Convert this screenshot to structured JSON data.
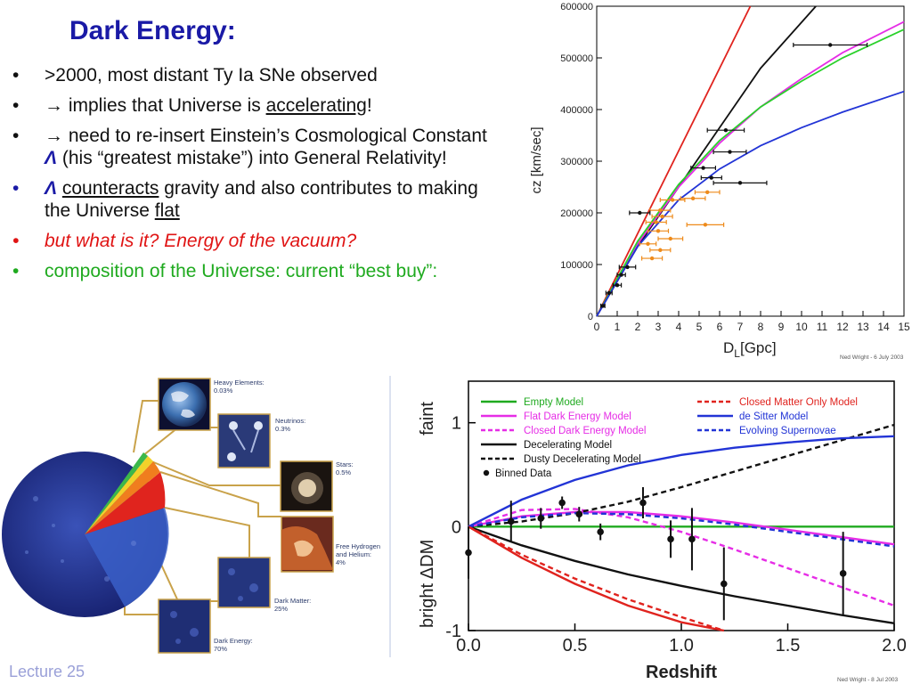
{
  "slide": {
    "title": "Dark Energy:",
    "footer": "Lecture 25",
    "bullets": [
      {
        "prefix": "",
        "text": ">2000, most distant Ty Ia SNe observed"
      },
      {
        "text_a": "→ implies that Universe is ",
        "text_u": "accelerating",
        "text_b": "!"
      },
      {
        "text_a": "→ need to re-insert Einstein’s Cosmological Constant ",
        "lambda": "Λ",
        "text_b": " (his “greatest mistake”) into General Relativity!"
      },
      {
        "lambda": "Λ",
        "text_u": "counteracts",
        "text_a": " gravity and also contributes to making the Universe ",
        "text_u2": "flat"
      },
      {
        "text": "but what is it?  Energy of the vacuum?"
      },
      {
        "text": "composition of the Universe: current “best buy”:"
      }
    ],
    "bullet_glyph": "•"
  },
  "composition": {
    "labels": [
      {
        "name": "Heavy Elements:",
        "value": "0.03%"
      },
      {
        "name": "Neutrinos:",
        "value": "0.3%"
      },
      {
        "name": "Stars:",
        "value": "0.5%"
      },
      {
        "name": "Free Hydrogen and Helium:",
        "value": "4%"
      },
      {
        "name": "Dark Matter:",
        "value": "25%"
      },
      {
        "name": "Dark Energy:",
        "value": "70%"
      }
    ]
  },
  "chart_data": [
    {
      "type": "scatter",
      "xlabel": "D",
      "xlabel_sub": "L",
      "xlabel_unit": "[Gpc]",
      "ylabel": "cz [km/sec]",
      "xlim": [
        0,
        15
      ],
      "ylim": [
        0,
        600000
      ],
      "x_ticks": [
        "0",
        "1",
        "2",
        "3",
        "4",
        "5",
        "6",
        "7",
        "8",
        "9",
        "10",
        "11",
        "12",
        "13",
        "14",
        "15"
      ],
      "y_ticks": [
        "0",
        "100000",
        "200000",
        "300000",
        "400000",
        "500000",
        "600000"
      ],
      "credit": "Ned Wright - 6 July 2003",
      "curve_colors": {
        "red": "#e0231e",
        "black": "#111111",
        "green": "#29d12a",
        "magenta": "#e62de6",
        "blue": "#2234d6"
      },
      "curves": [
        {
          "color": "red",
          "points": [
            [
              0,
              0
            ],
            [
              7.5,
              600000
            ]
          ]
        },
        {
          "color": "black",
          "points": [
            [
              0,
              0
            ],
            [
              2,
              135000
            ],
            [
              4,
              250000
            ],
            [
              6,
              365000
            ],
            [
              8,
              480000
            ],
            [
              10.7,
              600000
            ]
          ]
        },
        {
          "color": "magenta",
          "points": [
            [
              0,
              0
            ],
            [
              2,
              140000
            ],
            [
              4,
              250000
            ],
            [
              6,
              335000
            ],
            [
              8,
              405000
            ],
            [
              10,
              460000
            ],
            [
              12,
              510000
            ],
            [
              15,
              570000
            ]
          ]
        },
        {
          "color": "green",
          "points": [
            [
              0,
              0
            ],
            [
              2,
              145000
            ],
            [
              4,
              255000
            ],
            [
              6,
              340000
            ],
            [
              8,
              405000
            ],
            [
              10,
              455000
            ],
            [
              12,
              500000
            ],
            [
              15,
              555000
            ]
          ]
        },
        {
          "color": "blue",
          "points": [
            [
              0,
              0
            ],
            [
              2,
              135000
            ],
            [
              4,
              225000
            ],
            [
              6,
              285000
            ],
            [
              8,
              330000
            ],
            [
              10,
              365000
            ],
            [
              12,
              395000
            ],
            [
              15,
              435000
            ]
          ]
        }
      ],
      "points": [
        {
          "x": 11.4,
          "y": 525000,
          "xerr": 1.8,
          "color": "black"
        },
        {
          "x": 6.3,
          "y": 360000,
          "xerr": 0.9,
          "color": "black"
        },
        {
          "x": 6.5,
          "y": 318000,
          "xerr": 0.8,
          "color": "black"
        },
        {
          "x": 5.2,
          "y": 287000,
          "xerr": 0.6,
          "color": "black"
        },
        {
          "x": 5.6,
          "y": 268000,
          "xerr": 0.5,
          "color": "black"
        },
        {
          "x": 7.0,
          "y": 258000,
          "xerr": 1.3,
          "color": "black"
        },
        {
          "x": 5.4,
          "y": 240000,
          "xerr": 0.6,
          "color": "orange"
        },
        {
          "x": 4.7,
          "y": 228000,
          "xerr": 0.6,
          "color": "orange"
        },
        {
          "x": 3.7,
          "y": 225000,
          "xerr": 0.6,
          "color": "orange"
        },
        {
          "x": 3.1,
          "y": 205000,
          "xerr": 0.5,
          "color": "orange"
        },
        {
          "x": 2.1,
          "y": 200000,
          "xerr": 0.5,
          "color": "black"
        },
        {
          "x": 3.2,
          "y": 193000,
          "xerr": 0.5,
          "color": "orange"
        },
        {
          "x": 2.9,
          "y": 182000,
          "xerr": 0.5,
          "color": "orange"
        },
        {
          "x": 5.3,
          "y": 177000,
          "xerr": 0.9,
          "color": "orange"
        },
        {
          "x": 3.0,
          "y": 165000,
          "xerr": 0.5,
          "color": "orange"
        },
        {
          "x": 3.6,
          "y": 150000,
          "xerr": 0.6,
          "color": "orange"
        },
        {
          "x": 2.5,
          "y": 140000,
          "xerr": 0.4,
          "color": "orange"
        },
        {
          "x": 3.1,
          "y": 128000,
          "xerr": 0.5,
          "color": "orange"
        },
        {
          "x": 2.7,
          "y": 112000,
          "xerr": 0.5,
          "color": "orange"
        },
        {
          "x": 1.5,
          "y": 95000,
          "xerr": 0.4,
          "color": "black"
        },
        {
          "x": 1.2,
          "y": 80000,
          "xerr": 0.2,
          "color": "black"
        },
        {
          "x": 1.0,
          "y": 60000,
          "xerr": 0.2,
          "color": "black"
        },
        {
          "x": 0.6,
          "y": 45000,
          "xerr": 0.15,
          "color": "black"
        },
        {
          "x": 0.3,
          "y": 20000,
          "xerr": 0.1,
          "color": "black"
        }
      ]
    },
    {
      "type": "line",
      "xlabel": "Redshift",
      "ylabel": "ΔDM",
      "ylabel_top": "faint",
      "ylabel_bottom": "bright",
      "xlim": [
        0,
        2
      ],
      "ylim": [
        -1,
        1.4
      ],
      "x_ticks": [
        "0.0",
        "0.5",
        "1.0",
        "1.5",
        "2.0"
      ],
      "y_ticks": [
        "-1",
        "0",
        "1"
      ],
      "credit": "Ned Wright - 8 Jul 2003",
      "series": [
        {
          "name": "Empty Model",
          "color": "#1faa1f",
          "dash": "solid",
          "values": [
            [
              0,
              0
            ],
            [
              2,
              0
            ]
          ]
        },
        {
          "name": "Flat Dark Energy Model",
          "color": "#e62de6",
          "dash": "solid",
          "values": [
            [
              0,
              0
            ],
            [
              0.25,
              0.1
            ],
            [
              0.5,
              0.14
            ],
            [
              0.75,
              0.14
            ],
            [
              1.0,
              0.1
            ],
            [
              1.25,
              0.04
            ],
            [
              1.5,
              -0.03
            ],
            [
              1.75,
              -0.1
            ],
            [
              2,
              -0.17
            ]
          ]
        },
        {
          "name": "Closed Dark Energy Model",
          "color": "#e62de6",
          "dash": "dashed",
          "values": [
            [
              0,
              0
            ],
            [
              0.25,
              0.16
            ],
            [
              0.5,
              0.17
            ],
            [
              0.75,
              0.09
            ],
            [
              1.0,
              -0.05
            ],
            [
              1.25,
              -0.22
            ],
            [
              1.5,
              -0.4
            ],
            [
              1.75,
              -0.58
            ],
            [
              2,
              -0.76
            ]
          ]
        },
        {
          "name": "Decelerating Model",
          "color": "#111111",
          "dash": "solid",
          "values": [
            [
              0,
              0
            ],
            [
              0.25,
              -0.18
            ],
            [
              0.5,
              -0.33
            ],
            [
              0.75,
              -0.46
            ],
            [
              1.0,
              -0.57
            ],
            [
              1.25,
              -0.67
            ],
            [
              1.5,
              -0.76
            ],
            [
              1.75,
              -0.85
            ],
            [
              2,
              -0.93
            ]
          ]
        },
        {
          "name": "Dusty Decelerating Model",
          "color": "#111111",
          "dash": "dashed",
          "values": [
            [
              0,
              0
            ],
            [
              0.25,
              0.05
            ],
            [
              0.5,
              0.13
            ],
            [
              0.75,
              0.24
            ],
            [
              1.0,
              0.38
            ],
            [
              1.25,
              0.53
            ],
            [
              1.5,
              0.68
            ],
            [
              1.75,
              0.83
            ],
            [
              2,
              0.98
            ]
          ]
        },
        {
          "name": "Closed Matter Only Model",
          "color": "#e0231e",
          "dash": "dashed",
          "values": [
            [
              0,
              0
            ],
            [
              0.25,
              -0.27
            ],
            [
              0.5,
              -0.5
            ],
            [
              0.75,
              -0.7
            ],
            [
              1.0,
              -0.87
            ],
            [
              1.2,
              -1.0
            ]
          ]
        },
        {
          "name": "de Sitter Model",
          "color": "#2234d6",
          "dash": "solid",
          "values": [
            [
              0,
              0
            ],
            [
              0.25,
              0.26
            ],
            [
              0.5,
              0.45
            ],
            [
              0.75,
              0.59
            ],
            [
              1.0,
              0.69
            ],
            [
              1.25,
              0.76
            ],
            [
              1.5,
              0.81
            ],
            [
              1.75,
              0.85
            ],
            [
              2,
              0.87
            ]
          ]
        },
        {
          "name": "Evolving Supernovae",
          "color": "#2234d6",
          "dash": "dashed",
          "values": [
            [
              0,
              0
            ],
            [
              0.25,
              0.09
            ],
            [
              0.5,
              0.13
            ],
            [
              0.75,
              0.12
            ],
            [
              1.0,
              0.08
            ],
            [
              1.25,
              0.02
            ],
            [
              1.5,
              -0.05
            ],
            [
              1.75,
              -0.12
            ],
            [
              2,
              -0.19
            ]
          ]
        }
      ],
      "extra_curves": [
        {
          "color": "#e0231e",
          "dash": "solid",
          "values": [
            [
              0,
              0
            ],
            [
              0.25,
              -0.3
            ],
            [
              0.5,
              -0.55
            ],
            [
              0.75,
              -0.76
            ],
            [
              1.0,
              -0.92
            ],
            [
              1.2,
              -1.0
            ]
          ]
        }
      ],
      "binned_data": {
        "name": "Binned Data",
        "points": [
          {
            "z": 0.0,
            "y": -0.25,
            "err": 0.25
          },
          {
            "z": 0.2,
            "y": 0.05,
            "err": 0.2
          },
          {
            "z": 0.34,
            "y": 0.08,
            "err": 0.1
          },
          {
            "z": 0.44,
            "y": 0.23,
            "err": 0.06
          },
          {
            "z": 0.52,
            "y": 0.12,
            "err": 0.07
          },
          {
            "z": 0.62,
            "y": -0.05,
            "err": 0.08
          },
          {
            "z": 0.82,
            "y": 0.23,
            "err": 0.15
          },
          {
            "z": 0.95,
            "y": -0.12,
            "err": 0.18
          },
          {
            "z": 1.05,
            "y": -0.12,
            "err": 0.3
          },
          {
            "z": 1.2,
            "y": -0.55,
            "err": 0.35
          },
          {
            "z": 1.76,
            "y": -0.45,
            "err": 0.4
          }
        ]
      }
    }
  ]
}
